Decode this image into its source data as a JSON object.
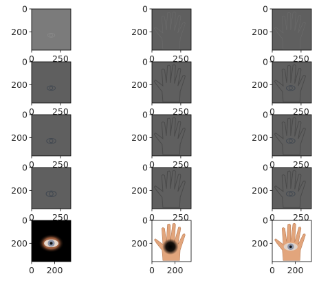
{
  "chart_data": {
    "type": "image_grid",
    "grid": {
      "rows": 5,
      "cols": 3
    },
    "axes_image": {
      "width": 340,
      "height": 360,
      "xticks": [
        0,
        250
      ],
      "yticks": [
        0,
        200
      ],
      "bottom_row_xticks": [
        0,
        200
      ]
    },
    "panels": [
      {
        "row": 0,
        "col": 0,
        "subject": "eye",
        "kind": "laplacian-gray",
        "level": 0
      },
      {
        "row": 0,
        "col": 1,
        "subject": "hand",
        "kind": "laplacian-gray",
        "level": 0
      },
      {
        "row": 0,
        "col": 2,
        "subject": "blend",
        "kind": "laplacian-gray",
        "level": 0
      },
      {
        "row": 1,
        "col": 0,
        "subject": "eye",
        "kind": "laplacian-gray",
        "level": 1
      },
      {
        "row": 1,
        "col": 1,
        "subject": "hand",
        "kind": "laplacian-gray",
        "level": 1
      },
      {
        "row": 1,
        "col": 2,
        "subject": "blend",
        "kind": "laplacian-gray",
        "level": 1
      },
      {
        "row": 2,
        "col": 0,
        "subject": "eye",
        "kind": "laplacian-gray",
        "level": 2
      },
      {
        "row": 2,
        "col": 1,
        "subject": "hand",
        "kind": "laplacian-gray",
        "level": 2
      },
      {
        "row": 2,
        "col": 2,
        "subject": "blend",
        "kind": "laplacian-gray",
        "level": 2
      },
      {
        "row": 3,
        "col": 0,
        "subject": "eye",
        "kind": "laplacian-gray",
        "level": 3
      },
      {
        "row": 3,
        "col": 1,
        "subject": "hand",
        "kind": "laplacian-gray",
        "level": 3
      },
      {
        "row": 3,
        "col": 2,
        "subject": "blend",
        "kind": "laplacian-gray",
        "level": 3
      },
      {
        "row": 4,
        "col": 0,
        "subject": "eye",
        "kind": "color-eye-dark",
        "level": 4
      },
      {
        "row": 4,
        "col": 1,
        "subject": "hand",
        "kind": "color-hand-hole",
        "level": 4
      },
      {
        "row": 4,
        "col": 2,
        "subject": "blend",
        "kind": "color-hand-eye",
        "level": 4
      }
    ],
    "colors": {
      "gray_bg": "#5f5f5f",
      "gray_bg_light": "#7b7b7b",
      "outline": "#4a4a4a",
      "skin": "#e2a57c",
      "iris": "#8a93a8"
    }
  }
}
